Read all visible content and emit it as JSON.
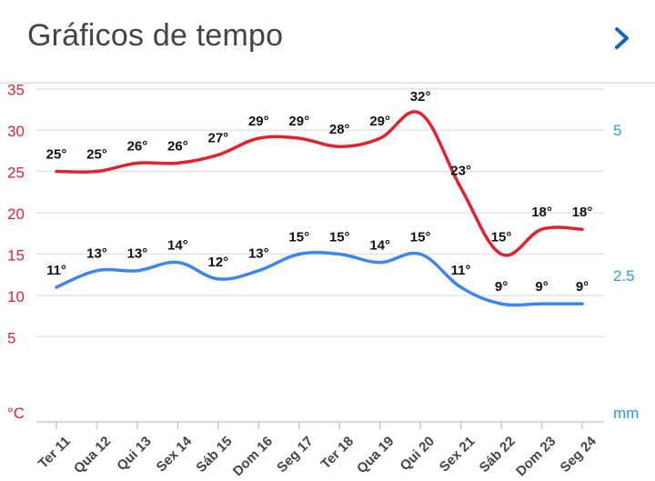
{
  "header": {
    "title": "Gráficos de tempo",
    "next_icon": "chevron-right-icon"
  },
  "colors": {
    "temp": "#e0232e",
    "rain": "#3d86f2",
    "rain_axis": "#2a9be0",
    "grid": "#e5e5e5",
    "text": "#111111"
  },
  "chart_data": {
    "type": "line",
    "categories": [
      "Ter 11",
      "Qua 12",
      "Qui 13",
      "Sex 14",
      "Sáb 15",
      "Dom 16",
      "Seg 17",
      "Ter 18",
      "Qua 19",
      "Qui 20",
      "Sex 21",
      "Sáb 22",
      "Dom 23",
      "Seg 24"
    ],
    "series": [
      {
        "axis": "left",
        "color": "#e0232e",
        "values": [
          25,
          25,
          26,
          26,
          27,
          29,
          29,
          28,
          29,
          32,
          23,
          15,
          18,
          18
        ],
        "labels": [
          "25°",
          "25°",
          "26°",
          "26°",
          "27°",
          "29°",
          "29°",
          "28°",
          "29°",
          "32°",
          "23°",
          "15°",
          "18°",
          "18°"
        ]
      },
      {
        "axis": "left",
        "color": "#3d86f2",
        "values": [
          11,
          13,
          13,
          14,
          12,
          13,
          15,
          15,
          14,
          15,
          11,
          9,
          9,
          9
        ],
        "labels": [
          "11°",
          "13°",
          "13°",
          "14°",
          "12°",
          "13°",
          "15°",
          "15°",
          "14°",
          "15°",
          "11°",
          "9°",
          "9°",
          "9°"
        ]
      }
    ],
    "left_axis": {
      "ticks": [
        35,
        30,
        25,
        20,
        15,
        10,
        5
      ],
      "unit": "°C",
      "ylim": [
        0,
        35
      ]
    },
    "right_axis": {
      "ticks": [
        5,
        2.5
      ],
      "unit": "mm",
      "ylim": [
        0,
        5
      ]
    },
    "grid": true
  }
}
